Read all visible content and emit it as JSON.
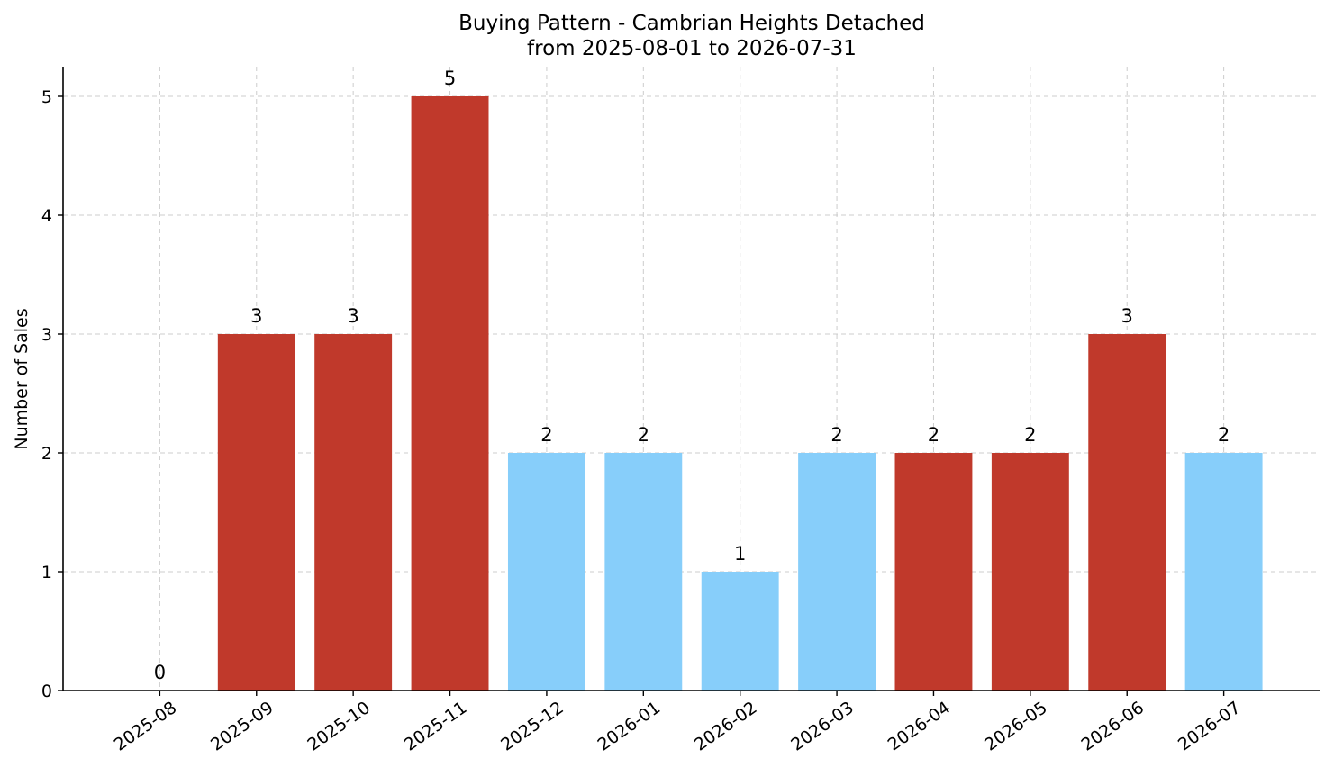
{
  "chart_data": {
    "type": "bar",
    "title": "Buying Pattern - Cambrian Heights Detached",
    "subtitle": "from 2025-08-01 to 2026-07-31",
    "xlabel": "",
    "ylabel": "Number of Sales",
    "categories": [
      "2025-08",
      "2025-09",
      "2025-10",
      "2025-11",
      "2025-12",
      "2026-01",
      "2026-02",
      "2026-03",
      "2026-04",
      "2026-05",
      "2026-06",
      "2026-07"
    ],
    "values": [
      0,
      3,
      3,
      5,
      2,
      2,
      1,
      2,
      2,
      2,
      3,
      2
    ],
    "bar_colors": [
      "#c0392b",
      "#c0392b",
      "#c0392b",
      "#c0392b",
      "#87cefa",
      "#87cefa",
      "#87cefa",
      "#87cefa",
      "#c0392b",
      "#c0392b",
      "#c0392b",
      "#87cefa"
    ],
    "y_ticks": [
      0,
      1,
      2,
      3,
      4,
      5
    ],
    "ylim": [
      0,
      5.25
    ],
    "grid": true,
    "data_labels": true,
    "legend": false
  }
}
